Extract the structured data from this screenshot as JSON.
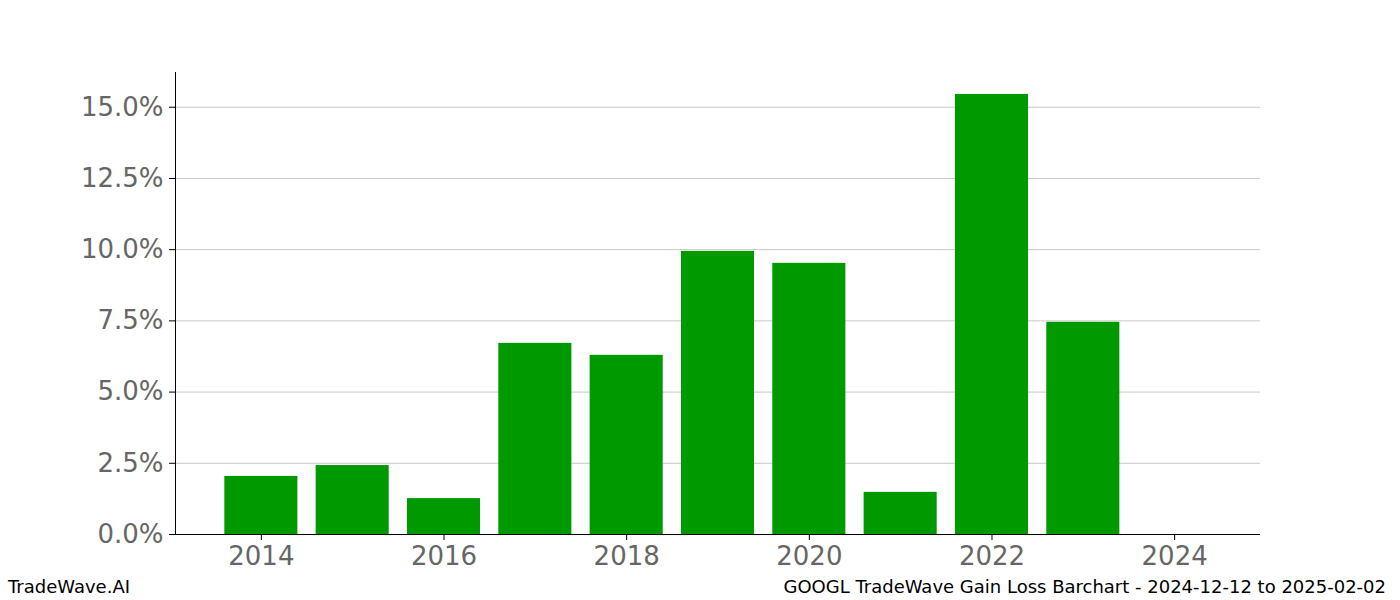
{
  "chart_data": {
    "type": "bar",
    "title": "GOOGL TradeWave Gain Loss Barchart - 2024-12-12 to 2025-02-02",
    "watermark": "TradeWave.AI",
    "categories": [
      2014,
      2015,
      2016,
      2017,
      2018,
      2019,
      2020,
      2021,
      2022,
      2023,
      2024
    ],
    "values": [
      2.04,
      2.42,
      1.26,
      6.71,
      6.29,
      9.94,
      9.52,
      1.48,
      15.45,
      7.45,
      0
    ],
    "color": "#009900",
    "xlim": [
      2013.06,
      2024.94
    ],
    "xticks": [
      2014,
      2016,
      2018,
      2020,
      2022,
      2024
    ],
    "ylim": [
      0,
      16.22
    ],
    "yticks": [
      {
        "value": 0,
        "label": "0.0%"
      },
      {
        "value": 2.5,
        "label": "2.5%"
      },
      {
        "value": 5,
        "label": "5.0%"
      },
      {
        "value": 7.5,
        "label": "7.5%"
      },
      {
        "value": 10,
        "label": "10.0%"
      },
      {
        "value": 12.5,
        "label": "12.5%"
      },
      {
        "value": 15,
        "label": "15.0%"
      }
    ],
    "grid": true
  }
}
